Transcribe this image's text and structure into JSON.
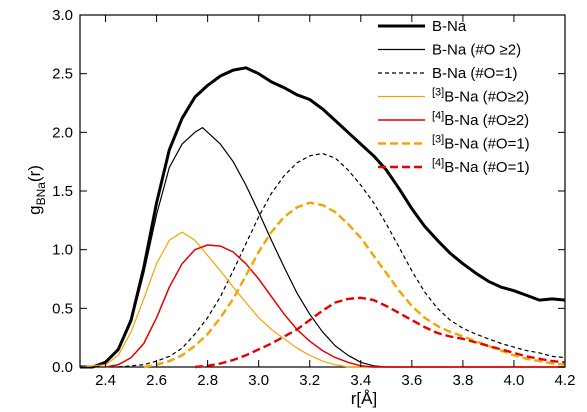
{
  "chart_data": {
    "type": "line",
    "xlabel": "r[Å]",
    "ylabel": "g_BNa(r)",
    "ylabel_main": "g",
    "ylabel_sub": "BNa",
    "ylabel_tail": "(r)",
    "xlim": [
      2.3,
      4.2
    ],
    "ylim": [
      0.0,
      3.0
    ],
    "xticks": [
      2.4,
      2.6,
      2.8,
      3.0,
      3.2,
      3.4,
      3.6,
      3.8,
      4.0,
      4.2
    ],
    "yticks": [
      0.0,
      0.5,
      1.0,
      1.5,
      2.0,
      2.5,
      3.0
    ],
    "xtick_labels": [
      "2.4",
      "2.6",
      "2.8",
      "3.0",
      "3.2",
      "3.4",
      "3.6",
      "3.8",
      "4.0",
      "4.2"
    ],
    "ytick_labels": [
      "0.0",
      "0.5",
      "1.0",
      "1.5",
      "2.0",
      "2.5",
      "3.0"
    ],
    "grid": false,
    "legend_position": "top-right",
    "series": [
      {
        "name": "B-Na",
        "legend": {
          "pre": "",
          "sup": "",
          "main": "B-Na",
          "tail": ""
        },
        "color": "#000000",
        "width": 3,
        "dash": "",
        "points": [
          [
            2.3,
            0.0
          ],
          [
            2.35,
            0.0
          ],
          [
            2.4,
            0.04
          ],
          [
            2.45,
            0.15
          ],
          [
            2.5,
            0.4
          ],
          [
            2.55,
            0.85
          ],
          [
            2.6,
            1.4
          ],
          [
            2.65,
            1.85
          ],
          [
            2.7,
            2.12
          ],
          [
            2.75,
            2.3
          ],
          [
            2.8,
            2.4
          ],
          [
            2.85,
            2.48
          ],
          [
            2.9,
            2.53
          ],
          [
            2.95,
            2.55
          ],
          [
            3.0,
            2.5
          ],
          [
            3.05,
            2.43
          ],
          [
            3.1,
            2.38
          ],
          [
            3.15,
            2.32
          ],
          [
            3.2,
            2.28
          ],
          [
            3.25,
            2.2
          ],
          [
            3.3,
            2.1
          ],
          [
            3.35,
            2.0
          ],
          [
            3.4,
            1.9
          ],
          [
            3.45,
            1.8
          ],
          [
            3.5,
            1.68
          ],
          [
            3.55,
            1.52
          ],
          [
            3.6,
            1.35
          ],
          [
            3.65,
            1.2
          ],
          [
            3.7,
            1.08
          ],
          [
            3.75,
            0.97
          ],
          [
            3.8,
            0.88
          ],
          [
            3.85,
            0.8
          ],
          [
            3.9,
            0.73
          ],
          [
            3.95,
            0.68
          ],
          [
            4.0,
            0.65
          ],
          [
            4.05,
            0.61
          ],
          [
            4.1,
            0.57
          ],
          [
            4.15,
            0.58
          ],
          [
            4.2,
            0.57
          ]
        ]
      },
      {
        "name": "B-Na (#O ≥2)",
        "legend": {
          "pre": "",
          "sup": "",
          "main": "B-Na",
          "tail": " (#O ≥2)"
        },
        "color": "#000000",
        "width": 1.2,
        "dash": "",
        "points": [
          [
            2.3,
            0.0
          ],
          [
            2.35,
            0.0
          ],
          [
            2.4,
            0.04
          ],
          [
            2.45,
            0.14
          ],
          [
            2.5,
            0.38
          ],
          [
            2.55,
            0.8
          ],
          [
            2.6,
            1.3
          ],
          [
            2.65,
            1.7
          ],
          [
            2.7,
            1.9
          ],
          [
            2.75,
            2.0
          ],
          [
            2.78,
            2.04
          ],
          [
            2.8,
            2.0
          ],
          [
            2.85,
            1.9
          ],
          [
            2.9,
            1.75
          ],
          [
            2.95,
            1.55
          ],
          [
            3.0,
            1.32
          ],
          [
            3.05,
            1.08
          ],
          [
            3.1,
            0.85
          ],
          [
            3.15,
            0.63
          ],
          [
            3.2,
            0.45
          ],
          [
            3.25,
            0.3
          ],
          [
            3.3,
            0.18
          ],
          [
            3.35,
            0.1
          ],
          [
            3.4,
            0.04
          ],
          [
            3.45,
            0.01
          ],
          [
            3.5,
            0.0
          ],
          [
            4.2,
            0.0
          ]
        ]
      },
      {
        "name": "B-Na (#O=1)",
        "legend": {
          "pre": "",
          "sup": "",
          "main": "B-Na",
          "tail": " (#O=1)"
        },
        "color": "#000000",
        "width": 1.2,
        "dash": "4,3",
        "points": [
          [
            2.45,
            0.0
          ],
          [
            2.55,
            0.02
          ],
          [
            2.6,
            0.05
          ],
          [
            2.65,
            0.09
          ],
          [
            2.7,
            0.16
          ],
          [
            2.75,
            0.28
          ],
          [
            2.8,
            0.42
          ],
          [
            2.85,
            0.6
          ],
          [
            2.9,
            0.82
          ],
          [
            2.95,
            1.05
          ],
          [
            3.0,
            1.28
          ],
          [
            3.05,
            1.48
          ],
          [
            3.1,
            1.63
          ],
          [
            3.15,
            1.74
          ],
          [
            3.2,
            1.8
          ],
          [
            3.25,
            1.82
          ],
          [
            3.3,
            1.78
          ],
          [
            3.35,
            1.68
          ],
          [
            3.4,
            1.55
          ],
          [
            3.45,
            1.4
          ],
          [
            3.5,
            1.22
          ],
          [
            3.55,
            1.02
          ],
          [
            3.6,
            0.82
          ],
          [
            3.65,
            0.64
          ],
          [
            3.7,
            0.5
          ],
          [
            3.75,
            0.4
          ],
          [
            3.8,
            0.33
          ],
          [
            3.85,
            0.28
          ],
          [
            3.9,
            0.24
          ],
          [
            3.95,
            0.2
          ],
          [
            4.0,
            0.17
          ],
          [
            4.05,
            0.14
          ],
          [
            4.1,
            0.12
          ],
          [
            4.15,
            0.09
          ],
          [
            4.2,
            0.08
          ]
        ]
      },
      {
        "name": "[3]B-Na (#O≥2)",
        "legend": {
          "pre": "",
          "sup": "[3]",
          "main": "B-Na",
          "tail": " (#O≥2)"
        },
        "color": "#f5a300",
        "width": 1.2,
        "dash": "",
        "points": [
          [
            2.3,
            0.0
          ],
          [
            2.4,
            0.02
          ],
          [
            2.45,
            0.1
          ],
          [
            2.5,
            0.3
          ],
          [
            2.55,
            0.58
          ],
          [
            2.6,
            0.88
          ],
          [
            2.65,
            1.08
          ],
          [
            2.7,
            1.15
          ],
          [
            2.75,
            1.08
          ],
          [
            2.8,
            0.95
          ],
          [
            2.85,
            0.82
          ],
          [
            2.9,
            0.68
          ],
          [
            2.95,
            0.55
          ],
          [
            3.0,
            0.42
          ],
          [
            3.05,
            0.32
          ],
          [
            3.1,
            0.24
          ],
          [
            3.15,
            0.16
          ],
          [
            3.2,
            0.1
          ],
          [
            3.25,
            0.05
          ],
          [
            3.3,
            0.02
          ],
          [
            3.35,
            0.0
          ],
          [
            4.2,
            0.0
          ]
        ]
      },
      {
        "name": "[4]B-Na (#O≥2)",
        "legend": {
          "pre": "",
          "sup": "[4]",
          "main": "B-Na",
          "tail": " (#O≥2)"
        },
        "color": "#e60000",
        "width": 1.5,
        "dash": "",
        "points": [
          [
            2.4,
            0.0
          ],
          [
            2.45,
            0.02
          ],
          [
            2.5,
            0.08
          ],
          [
            2.55,
            0.2
          ],
          [
            2.6,
            0.42
          ],
          [
            2.65,
            0.68
          ],
          [
            2.7,
            0.88
          ],
          [
            2.75,
            1.0
          ],
          [
            2.8,
            1.04
          ],
          [
            2.85,
            1.03
          ],
          [
            2.9,
            0.98
          ],
          [
            2.95,
            0.88
          ],
          [
            3.0,
            0.75
          ],
          [
            3.05,
            0.6
          ],
          [
            3.1,
            0.45
          ],
          [
            3.15,
            0.32
          ],
          [
            3.2,
            0.22
          ],
          [
            3.25,
            0.14
          ],
          [
            3.3,
            0.08
          ],
          [
            3.35,
            0.04
          ],
          [
            3.4,
            0.01
          ],
          [
            3.45,
            0.0
          ],
          [
            4.2,
            0.0
          ]
        ]
      },
      {
        "name": "[3]B-Na (#O=1)",
        "legend": {
          "pre": "",
          "sup": "[3]",
          "main": "B-Na",
          "tail": " (#O=1)"
        },
        "color": "#f5a300",
        "width": 2.4,
        "dash": "8,4",
        "points": [
          [
            2.55,
            0.0
          ],
          [
            2.6,
            0.02
          ],
          [
            2.65,
            0.05
          ],
          [
            2.7,
            0.1
          ],
          [
            2.75,
            0.18
          ],
          [
            2.8,
            0.28
          ],
          [
            2.85,
            0.42
          ],
          [
            2.9,
            0.58
          ],
          [
            2.95,
            0.78
          ],
          [
            3.0,
            0.98
          ],
          [
            3.05,
            1.15
          ],
          [
            3.1,
            1.28
          ],
          [
            3.15,
            1.36
          ],
          [
            3.2,
            1.4
          ],
          [
            3.25,
            1.38
          ],
          [
            3.3,
            1.32
          ],
          [
            3.35,
            1.22
          ],
          [
            3.4,
            1.1
          ],
          [
            3.45,
            0.95
          ],
          [
            3.5,
            0.8
          ],
          [
            3.55,
            0.65
          ],
          [
            3.6,
            0.52
          ],
          [
            3.65,
            0.42
          ],
          [
            3.7,
            0.35
          ],
          [
            3.75,
            0.3
          ],
          [
            3.8,
            0.26
          ],
          [
            3.85,
            0.22
          ],
          [
            3.9,
            0.18
          ],
          [
            3.95,
            0.14
          ],
          [
            4.0,
            0.1
          ],
          [
            4.05,
            0.07
          ],
          [
            4.1,
            0.05
          ],
          [
            4.15,
            0.03
          ],
          [
            4.2,
            0.02
          ]
        ]
      },
      {
        "name": "[4]B-Na (#O=1)",
        "legend": {
          "pre": "",
          "sup": "[4]",
          "main": "B-Na",
          "tail": " (#O=1)"
        },
        "color": "#e60000",
        "width": 2.4,
        "dash": "8,4",
        "points": [
          [
            2.75,
            0.0
          ],
          [
            2.8,
            0.01
          ],
          [
            2.85,
            0.03
          ],
          [
            2.9,
            0.06
          ],
          [
            2.95,
            0.1
          ],
          [
            3.0,
            0.15
          ],
          [
            3.05,
            0.2
          ],
          [
            3.1,
            0.26
          ],
          [
            3.15,
            0.32
          ],
          [
            3.2,
            0.4
          ],
          [
            3.25,
            0.48
          ],
          [
            3.3,
            0.55
          ],
          [
            3.35,
            0.58
          ],
          [
            3.4,
            0.59
          ],
          [
            3.45,
            0.57
          ],
          [
            3.5,
            0.52
          ],
          [
            3.55,
            0.46
          ],
          [
            3.6,
            0.4
          ],
          [
            3.65,
            0.34
          ],
          [
            3.7,
            0.29
          ],
          [
            3.75,
            0.26
          ],
          [
            3.8,
            0.24
          ],
          [
            3.85,
            0.21
          ],
          [
            3.9,
            0.18
          ],
          [
            3.95,
            0.15
          ],
          [
            4.0,
            0.12
          ],
          [
            4.05,
            0.09
          ],
          [
            4.1,
            0.07
          ],
          [
            4.15,
            0.05
          ],
          [
            4.2,
            0.04
          ]
        ]
      }
    ]
  }
}
